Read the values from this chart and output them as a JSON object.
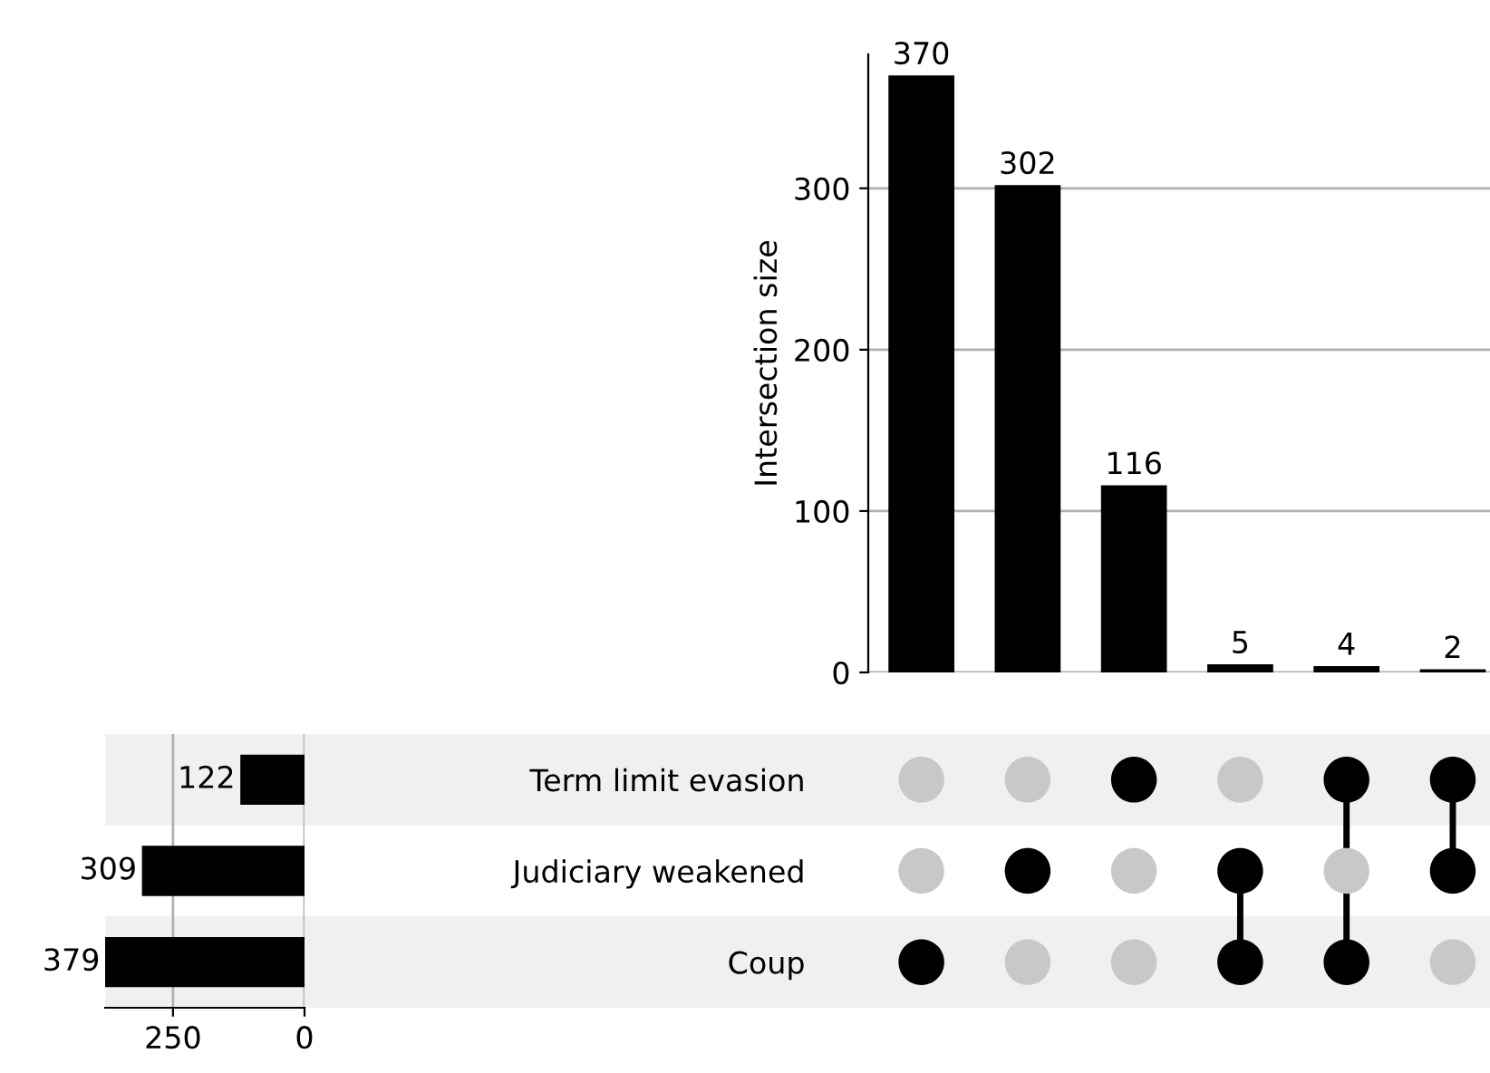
{
  "chart_data": [
    {
      "type": "bar",
      "categories": [
        null,
        null,
        null,
        null,
        null,
        null
      ],
      "values": [
        370,
        302,
        116,
        5,
        4,
        2
      ],
      "color": "#000000",
      "ylabel": "Intersection size",
      "ylim": [
        0,
        383
      ],
      "yticks": [
        0,
        100,
        200,
        300
      ],
      "grid": "y",
      "data_labels": true
    },
    {
      "type": "bar",
      "orientation": "horizontal",
      "categories": [
        null,
        null,
        null
      ],
      "values": [
        122,
        309,
        379
      ],
      "color": "#000000",
      "xlim": [
        379,
        0
      ],
      "xticks": [
        250,
        0
      ],
      "grid": "x",
      "data_labels": true
    },
    {
      "type": "other",
      "categories": [
        null,
        null,
        null,
        null,
        null,
        null
      ],
      "y_categories": [
        "Term limit evasion",
        "Judiciary weakened",
        "Coup"
      ],
      "cells": [
        [
          false,
          false,
          true,
          false,
          true,
          true
        ],
        [
          false,
          true,
          false,
          true,
          false,
          true
        ],
        [
          true,
          false,
          false,
          true,
          true,
          false
        ]
      ],
      "colors": [
        "#000000",
        "#c8c8c8"
      ]
    }
  ]
}
